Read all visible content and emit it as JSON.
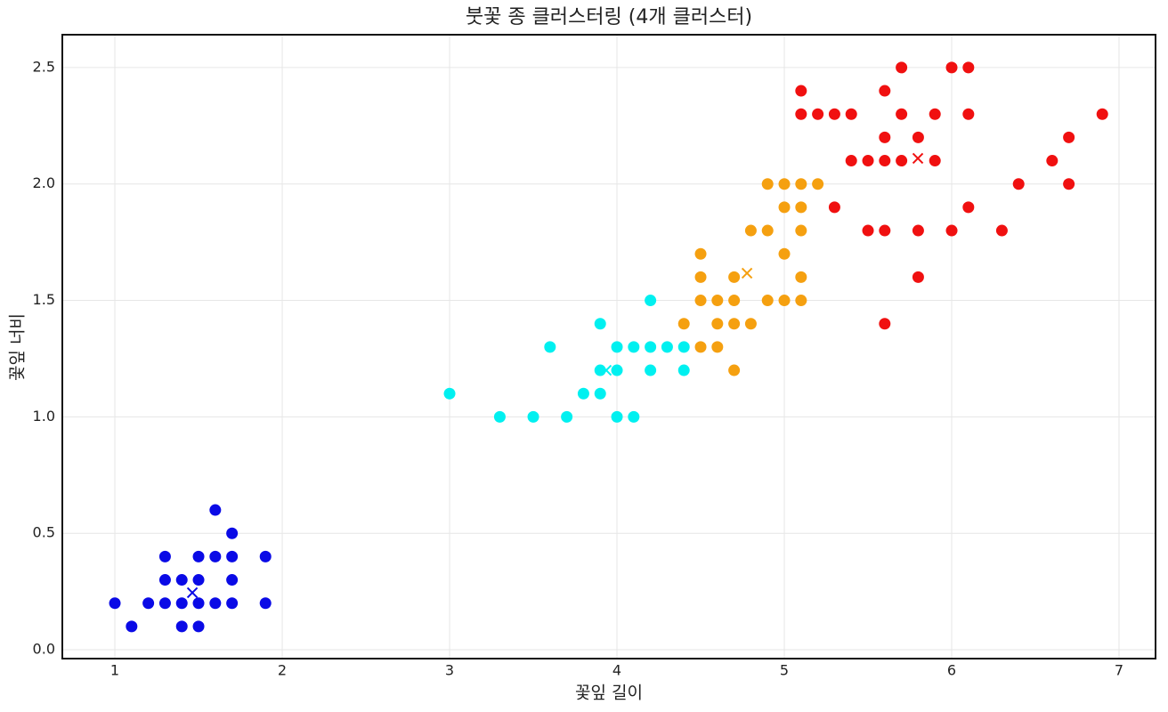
{
  "chart_data": {
    "type": "scatter",
    "title": "붓꽃 종 클러스터링 (4개 클러스터)",
    "x_label": "꽃잎 길이",
    "y_label": "꽃잎 너비",
    "xlim": [
      0.686,
      7.218
    ],
    "ylim": [
      -0.038,
      2.641
    ],
    "xticks": [
      1,
      2,
      3,
      4,
      5,
      6,
      7
    ],
    "yticks": [
      {
        "value": 0,
        "label": "0.0"
      },
      0.5,
      {
        "value": 1,
        "label": "1.0"
      },
      1.5,
      {
        "value": 2,
        "label": "2.0"
      },
      2.5
    ],
    "grid": true,
    "series": [
      {
        "color": "#0a0ae6",
        "x": [
          1,
          1.1,
          1.2,
          1.3,
          1.3,
          1.3,
          1.4,
          1.4,
          1.4,
          1.5,
          1.5,
          1.5,
          1.5,
          1.6,
          1.6,
          1.6,
          1.7,
          1.7,
          1.7,
          1.7,
          1.9,
          1.9
        ],
        "values": [
          0.2,
          0.1,
          0.2,
          0.4,
          0.3,
          0.2,
          0.3,
          0.2,
          0.1,
          0.4,
          0.3,
          0.2,
          0.1,
          0.6,
          0.4,
          0.2,
          0.5,
          0.4,
          0.3,
          0.2,
          0.4,
          0.2
        ],
        "centroid": [
          1.463,
          0.245
        ]
      },
      {
        "color": "#00f0f0",
        "x": [
          3.0,
          3.3,
          3.5,
          3.6,
          3.7,
          3.8,
          3.9,
          3.9,
          3.9,
          4.0,
          4.0,
          4.0,
          4.1,
          4.1,
          4.2,
          4.2,
          4.2,
          4.3,
          4.4,
          4.4
        ],
        "values": [
          1.1,
          1.0,
          1.0,
          1.3,
          1.0,
          1.1,
          1.4,
          1.2,
          1.1,
          1.3,
          1.2,
          1.0,
          1.3,
          1.0,
          1.5,
          1.3,
          1.2,
          1.3,
          1.3,
          1.2
        ],
        "centroid": [
          3.936,
          1.2
        ]
      },
      {
        "color": "#f5a010",
        "x": [
          4.5,
          4.5,
          4.5,
          4.5,
          4.4,
          4.6,
          4.6,
          4.6,
          4.7,
          4.7,
          4.7,
          4.7,
          4.8,
          4.8,
          4.9,
          4.9,
          4.9,
          5.0,
          5.0,
          5.0,
          5.0,
          5.1,
          5.1,
          5.1,
          5.1,
          5.1,
          5.2
        ],
        "values": [
          1.7,
          1.6,
          1.5,
          1.3,
          1.4,
          1.5,
          1.4,
          1.3,
          1.6,
          1.5,
          1.4,
          1.2,
          1.8,
          1.4,
          2.0,
          1.8,
          1.5,
          2.0,
          1.9,
          1.7,
          1.5,
          2.0,
          1.9,
          1.8,
          1.6,
          1.5,
          2.0
        ],
        "centroid": [
          4.777,
          1.617
        ]
      },
      {
        "color": "#f01010",
        "x": [
          5.1,
          5.1,
          5.2,
          5.3,
          5.3,
          5.4,
          5.4,
          5.5,
          5.5,
          5.6,
          5.6,
          5.6,
          5.6,
          5.6,
          5.7,
          5.7,
          5.7,
          5.8,
          5.8,
          5.8,
          5.9,
          5.9,
          6.0,
          6.0,
          6.1,
          6.1,
          6.1,
          6.3,
          6.4,
          6.6,
          6.7,
          6.7,
          6.9
        ],
        "values": [
          2.4,
          2.3,
          2.3,
          2.3,
          1.9,
          2.3,
          2.1,
          2.1,
          1.8,
          2.4,
          2.2,
          2.1,
          1.8,
          1.4,
          2.5,
          2.3,
          2.1,
          2.2,
          1.8,
          1.6,
          2.3,
          2.1,
          2.5,
          1.8,
          2.5,
          2.3,
          1.9,
          1.8,
          2.0,
          2.1,
          2.2,
          2.0,
          2.3
        ],
        "centroid": [
          5.798,
          2.11
        ]
      }
    ]
  }
}
